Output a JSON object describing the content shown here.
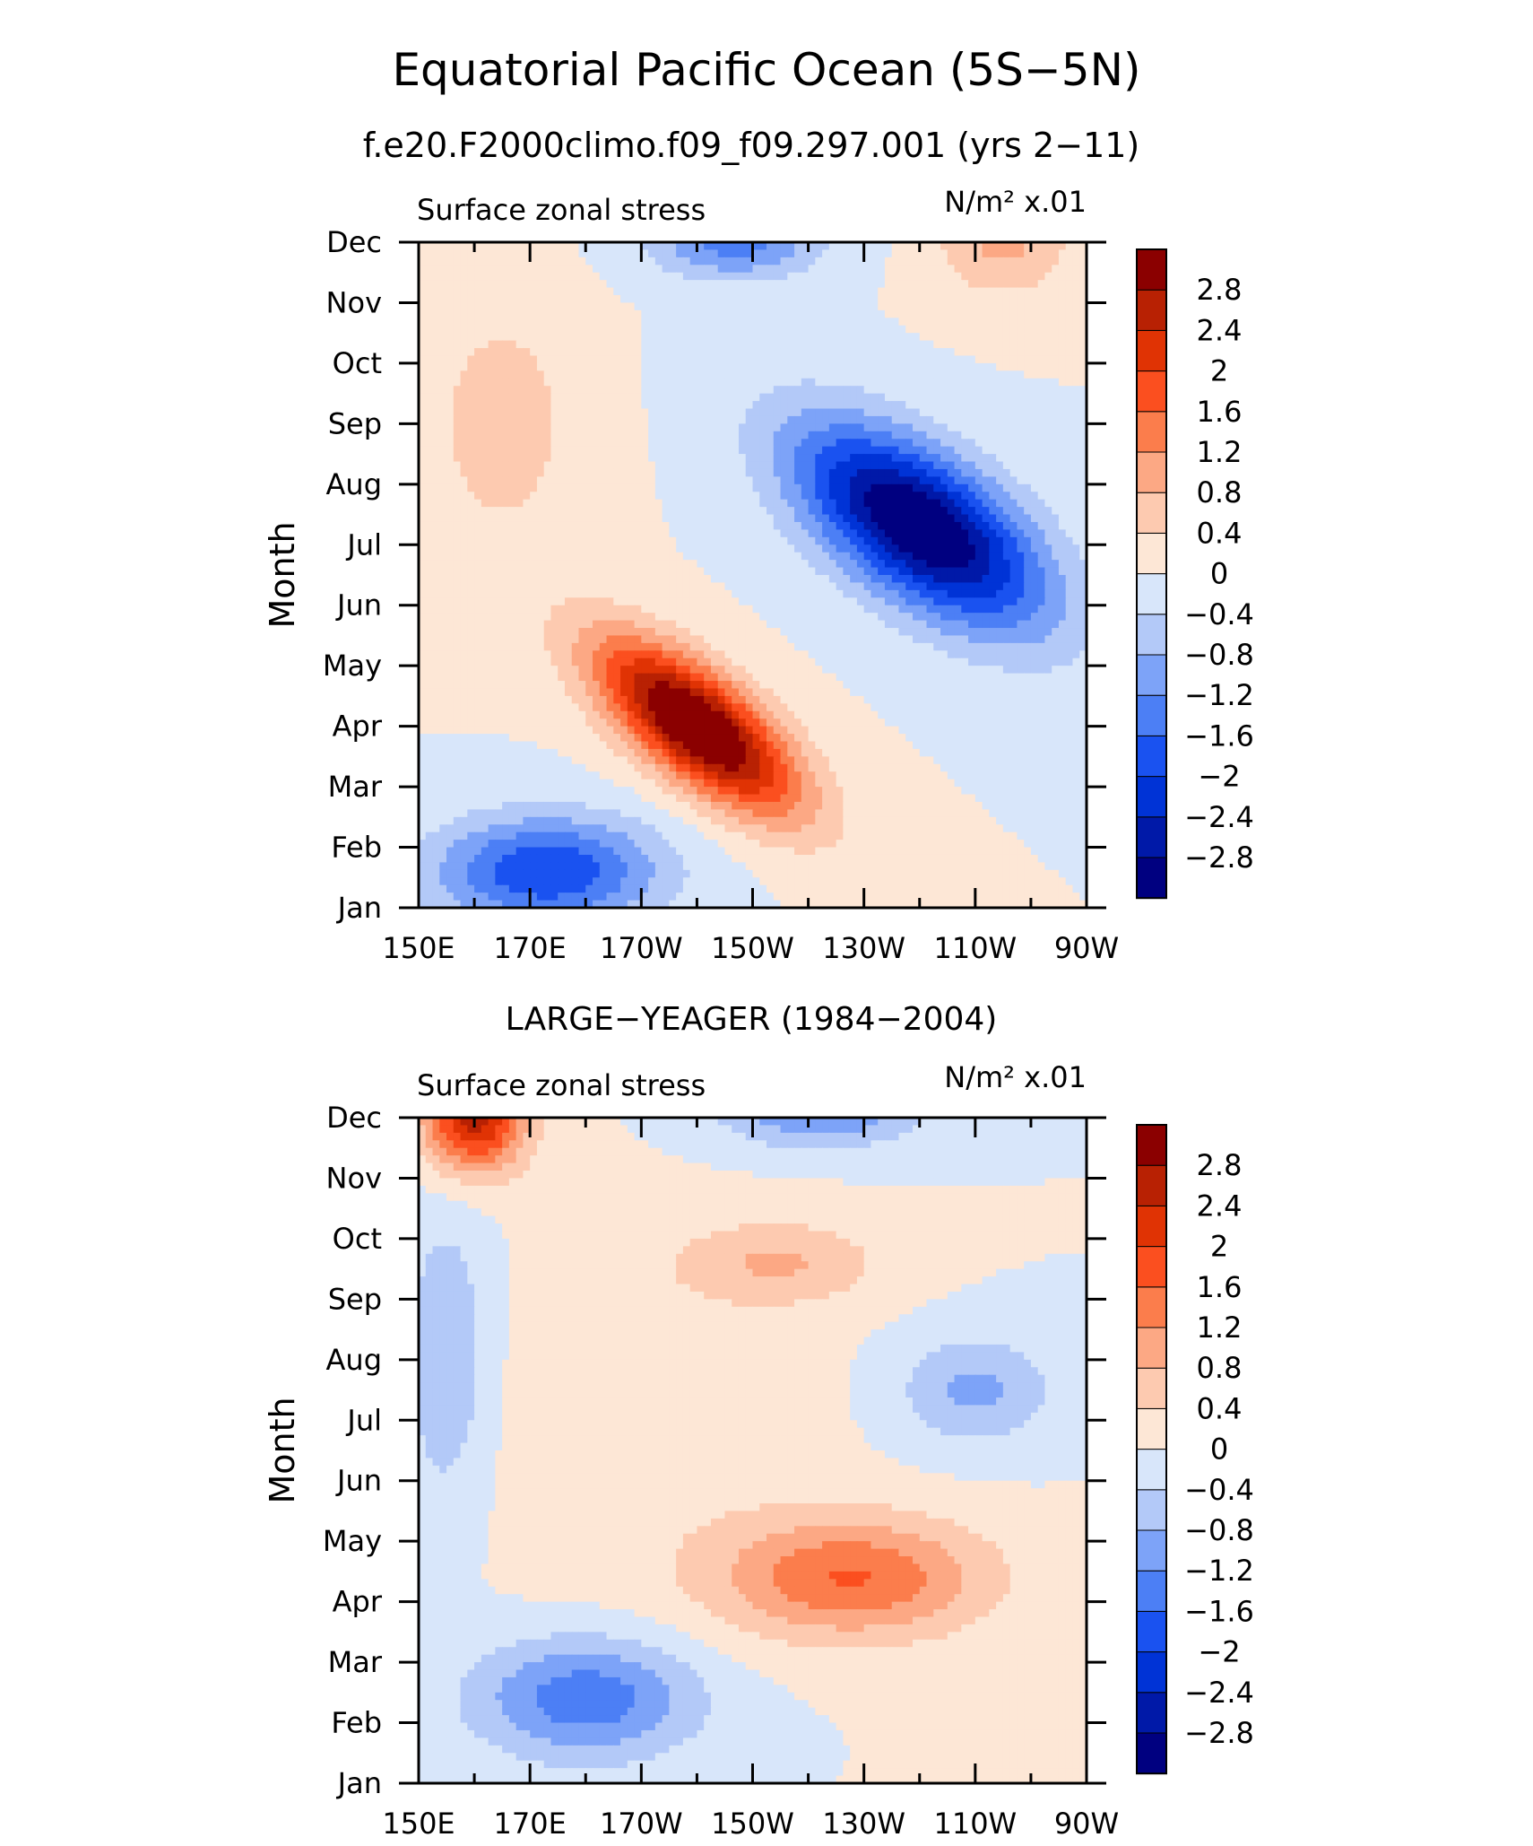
{
  "figure": {
    "title": "Equatorial Pacific Ocean (5S−5N)",
    "subtitle": "f.e20.F2000climo.f09_f09.297.001 (yrs 2−11)"
  },
  "chart_data": [
    {
      "type": "heatmap",
      "panel_title": "",
      "left_label": "Surface zonal stress",
      "right_label": "N/m² x.01",
      "ylabel": "Month",
      "x_range": [
        150,
        270
      ],
      "x_ticks": [
        150,
        170,
        190,
        210,
        230,
        250,
        270
      ],
      "x_tick_labels": [
        "150E",
        "170E",
        "170W",
        "150W",
        "130W",
        "110W",
        "90W"
      ],
      "y_categories": [
        "Jan",
        "Feb",
        "Mar",
        "Apr",
        "May",
        "Jun",
        "Jul",
        "Aug",
        "Sep",
        "Oct",
        "Nov",
        "Dec"
      ],
      "features": [
        {
          "x": 200,
          "y": 3.0,
          "amp": 3.6,
          "sx": 18,
          "sy": 1.0,
          "tilt": -0.055
        },
        {
          "x": 240,
          "y": 6.3,
          "amp": -3.4,
          "sx": 22,
          "sy": 1.3,
          "tilt": -0.045
        },
        {
          "x": 173,
          "y": 0.6,
          "amp": -2.0,
          "sx": 20,
          "sy": 0.9,
          "tilt": 0
        },
        {
          "x": 207,
          "y": 11.0,
          "amp": -1.4,
          "sx": 15,
          "sy": 0.6,
          "tilt": 0
        },
        {
          "x": 255,
          "y": 11.0,
          "amp": 0.9,
          "sx": 12,
          "sy": 0.9,
          "tilt": 0
        },
        {
          "x": 165,
          "y": 8.0,
          "amp": 0.6,
          "sx": 14,
          "sy": 2.2,
          "tilt": 0
        }
      ]
    },
    {
      "type": "heatmap",
      "panel_title": "LARGE−YEAGER (1984−2004)",
      "left_label": "Surface zonal stress",
      "right_label": "N/m² x.01",
      "ylabel": "Month",
      "x_range": [
        150,
        270
      ],
      "x_ticks": [
        150,
        170,
        190,
        210,
        230,
        250,
        270
      ],
      "x_tick_labels": [
        "150E",
        "170E",
        "170W",
        "150W",
        "130W",
        "110W",
        "90W"
      ],
      "y_categories": [
        "Jan",
        "Feb",
        "Mar",
        "Apr",
        "May",
        "Jun",
        "Jul",
        "Aug",
        "Sep",
        "Oct",
        "Nov",
        "Dec"
      ],
      "features": [
        {
          "x": 160,
          "y": 11.0,
          "amp": 2.6,
          "sx": 9,
          "sy": 0.9,
          "tilt": 0
        },
        {
          "x": 228,
          "y": 3.4,
          "amp": 1.6,
          "sx": 24,
          "sy": 1.0,
          "tilt": 0
        },
        {
          "x": 215,
          "y": 8.6,
          "amp": 0.8,
          "sx": 18,
          "sy": 0.7,
          "tilt": 0
        },
        {
          "x": 180,
          "y": 1.4,
          "amp": -1.5,
          "sx": 20,
          "sy": 1.0,
          "tilt": 0
        },
        {
          "x": 222,
          "y": 11.1,
          "amp": -1.2,
          "sx": 18,
          "sy": 0.6,
          "tilt": 0
        },
        {
          "x": 250,
          "y": 6.5,
          "amp": -0.9,
          "sx": 14,
          "sy": 0.9,
          "tilt": 0
        },
        {
          "x": 155,
          "y": 7.0,
          "amp": -0.8,
          "sx": 8,
          "sy": 2.5,
          "tilt": 0
        },
        {
          "x": 190,
          "y": 6.0,
          "amp": 0.3,
          "sx": 30,
          "sy": 3.0,
          "tilt": 0
        }
      ]
    }
  ],
  "colorbar": {
    "levels": [
      "−2.8",
      "−2.4",
      "−2",
      "−1.6",
      "−1.2",
      "−0.8",
      "−0.4",
      "0",
      "0.4",
      "0.8",
      "1.2",
      "1.6",
      "2",
      "2.4",
      "2.8"
    ],
    "colors": [
      "#000080",
      "#0019a8",
      "#0033d6",
      "#1a52f0",
      "#4c7ff5",
      "#7da3f8",
      "#b3c9f8",
      "#d8e6fa",
      "#fde7d6",
      "#fdcab0",
      "#fca884",
      "#fb7d4c",
      "#fb4f1f",
      "#e03304",
      "#b82103",
      "#8b0000"
    ]
  }
}
